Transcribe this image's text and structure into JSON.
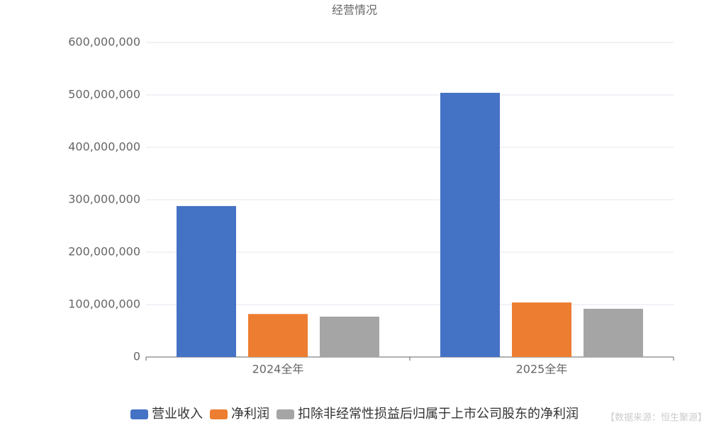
{
  "chart_data": {
    "type": "bar",
    "title": "经营情况",
    "categories": [
      "2024全年",
      "2025全年"
    ],
    "series": [
      {
        "name": "营业收入",
        "color": "#4472c4",
        "values": [
          288000000,
          504000000
        ]
      },
      {
        "name": "净利润",
        "color": "#ed7d31",
        "values": [
          82000000,
          104000000
        ]
      },
      {
        "name": "扣除非经常性损益后归属于上市公司股东的净利润",
        "color": "#a5a5a5",
        "values": [
          77000000,
          92000000
        ]
      }
    ],
    "ylim": [
      0,
      600000000
    ],
    "yticks": [
      0,
      {
        "value": 100000000,
        "label": "100,000,000"
      },
      {
        "value": 200000000,
        "label": "200,000,000"
      },
      {
        "value": 300000000,
        "label": "300,000,000"
      },
      {
        "value": 400000000,
        "label": "400,000,000"
      },
      {
        "value": 500000000,
        "label": "500,000,000"
      },
      {
        "value": 600000000,
        "label": "600,000,000"
      }
    ],
    "grid": true,
    "legend": "bottom",
    "source": "【数据来源：恒生聚源】"
  }
}
